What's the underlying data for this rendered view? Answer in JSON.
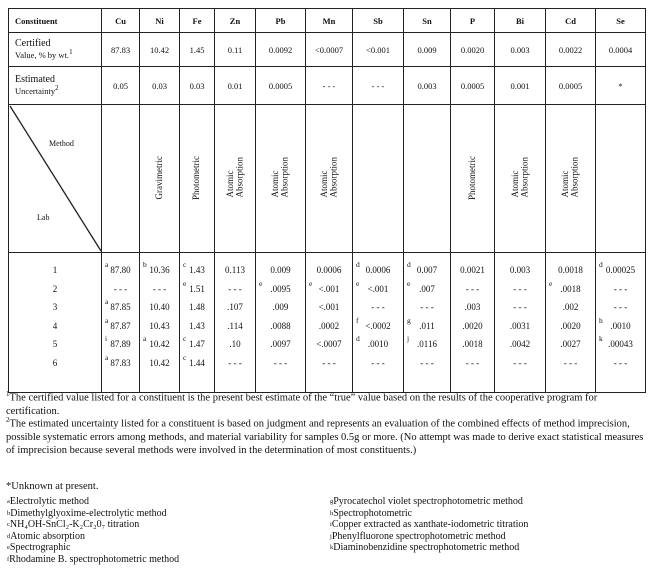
{
  "table": {
    "header": [
      "Constituent",
      "Cu",
      "Ni",
      "Fe",
      "Zn",
      "Pb",
      "Mn",
      "Sb",
      "Sn",
      "P",
      "Bi",
      "Cd",
      "Se"
    ],
    "certified": {
      "label_line1": "Certified",
      "label_line2": "Value, % by wt.",
      "label_sup": "1",
      "values": [
        "87.83",
        "10.42",
        "1.45",
        "0.11",
        "0.0092",
        "<0.0007",
        "<0.001",
        "0.009",
        "0.0020",
        "0.003",
        "0.0022",
        "0.0004"
      ]
    },
    "uncertainty": {
      "label_line1": "Estimated",
      "label_line2": "Uncertainty",
      "label_sup": "2",
      "values": [
        "0.05",
        "0.03",
        "0.03",
        "0.01",
        "0.0005",
        "- - -",
        "- - -",
        "0.003",
        "0.0005",
        "0.001",
        "0.0005",
        "*"
      ]
    },
    "method_label": "Method",
    "lab_label": "Lab",
    "methods": [
      [
        "",
        ""
      ],
      [
        "Gravimetric",
        ""
      ],
      [
        "Photometric",
        ""
      ],
      [
        "Atomic",
        "Absorption"
      ],
      [
        "Atomic",
        "Absorption"
      ],
      [
        "Atomic",
        "Absorption"
      ],
      [
        "",
        ""
      ],
      [
        "",
        ""
      ],
      [
        "Photometric",
        ""
      ],
      [
        "Atomic",
        "Absorption"
      ],
      [
        "Atomic",
        "Absorption"
      ],
      [
        "",
        ""
      ]
    ],
    "labs": [
      "1",
      "2",
      "3",
      "4",
      "5",
      "6"
    ],
    "columns": [
      [
        [
          "a",
          "87.80"
        ],
        [
          "",
          "- - -"
        ],
        [
          "a",
          "87.85"
        ],
        [
          "a",
          "87.87"
        ],
        [
          "i",
          "87.89"
        ],
        [
          "a",
          "87.83"
        ]
      ],
      [
        [
          "b",
          "10.36"
        ],
        [
          "",
          "- - -"
        ],
        [
          "",
          "10.40"
        ],
        [
          "",
          "10.43"
        ],
        [
          "a",
          "10.42"
        ],
        [
          "",
          "10.42"
        ]
      ],
      [
        [
          "c",
          "1.43"
        ],
        [
          "e",
          "1.51"
        ],
        [
          "",
          "1.48"
        ],
        [
          "",
          "1.43"
        ],
        [
          "c",
          "1.47"
        ],
        [
          "c",
          "1.44"
        ]
      ],
      [
        [
          "",
          "0.113"
        ],
        [
          "",
          "- - -"
        ],
        [
          "",
          ".107"
        ],
        [
          "",
          ".114"
        ],
        [
          "",
          ".10"
        ],
        [
          "",
          "- - -"
        ]
      ],
      [
        [
          "",
          "0.009"
        ],
        [
          "e",
          ".0095"
        ],
        [
          "",
          ".009"
        ],
        [
          "",
          ".0088"
        ],
        [
          "",
          ".0097"
        ],
        [
          "",
          "- - -"
        ]
      ],
      [
        [
          "",
          "0.0006"
        ],
        [
          "e",
          "<.001"
        ],
        [
          "",
          "<.001"
        ],
        [
          "",
          ".0002"
        ],
        [
          "",
          "<.0007"
        ],
        [
          "",
          "- - -"
        ]
      ],
      [
        [
          "d",
          "0.0006"
        ],
        [
          "e",
          "<.001"
        ],
        [
          "",
          "- - -"
        ],
        [
          "f",
          "<.0002"
        ],
        [
          "d",
          ".0010"
        ],
        [
          "",
          "- - -"
        ]
      ],
      [
        [
          "d",
          "0.007"
        ],
        [
          "e",
          ".007"
        ],
        [
          "",
          "- - -"
        ],
        [
          "g",
          ".011"
        ],
        [
          "j",
          ".0116"
        ],
        [
          "",
          "- - -"
        ]
      ],
      [
        [
          "",
          "0.0021"
        ],
        [
          "",
          "- - -"
        ],
        [
          "",
          ".003"
        ],
        [
          "",
          ".0020"
        ],
        [
          "",
          ".0018"
        ],
        [
          "",
          "- - -"
        ]
      ],
      [
        [
          "",
          "0.003"
        ],
        [
          "",
          "- - -"
        ],
        [
          "",
          "- - -"
        ],
        [
          "",
          ".0031"
        ],
        [
          "",
          ".0042"
        ],
        [
          "",
          "- - -"
        ]
      ],
      [
        [
          "",
          "0.0018"
        ],
        [
          "e",
          ".0018"
        ],
        [
          "",
          ".002"
        ],
        [
          "",
          ".0020"
        ],
        [
          "",
          ".0027"
        ],
        [
          "",
          "- - -"
        ]
      ],
      [
        [
          "d",
          "0.00025"
        ],
        [
          "",
          "- - -"
        ],
        [
          "",
          "- - -"
        ],
        [
          "h",
          ".0010"
        ],
        [
          "k",
          ".00043"
        ],
        [
          "",
          "- - -"
        ]
      ]
    ]
  },
  "footnotes": {
    "n1_sup": "1",
    "n1": "The certified value listed for a constituent is the present best estimate of the “true” value based on the results of the cooperative program for certification.",
    "n2_sup": "2",
    "n2": "The estimated uncertainty listed for a constituent is based on judgment and represents an evaluation of the combined effects of method imprecision, possible systematic errors among methods, and material variability for samples 0.5g or more. (No attempt was made to derive exact statistical measures of imprecision because several methods were involved in the determination of most constituents.)",
    "unknown": "*Unknown at present."
  },
  "method_keys_left": [
    {
      "key": "a",
      "text": "Electrolytic method"
    },
    {
      "key": "b",
      "text": "Dimethylglyoxime-electrolytic method"
    },
    {
      "key": "c",
      "text": "NH₄OH-SnCl₂-K₂Cr₂0₇ titration"
    },
    {
      "key": "d",
      "text": "Atomic absorption"
    },
    {
      "key": "e",
      "text": "Spectrographic"
    },
    {
      "key": "f",
      "text": "Rhodamine B. spectrophotometric method"
    }
  ],
  "method_keys_right": [
    {
      "key": "g",
      "text": "Pyrocatechol violet spectrophotometric method"
    },
    {
      "key": "h",
      "text": "Spectrophotometric"
    },
    {
      "key": "i",
      "text": "Copper extracted as xanthate-iodometric titration"
    },
    {
      "key": "j",
      "text": "Phenylfluorone spectrophotometric method"
    },
    {
      "key": "k",
      "text": "Diaminobenzidine spectrophotometric method"
    }
  ]
}
